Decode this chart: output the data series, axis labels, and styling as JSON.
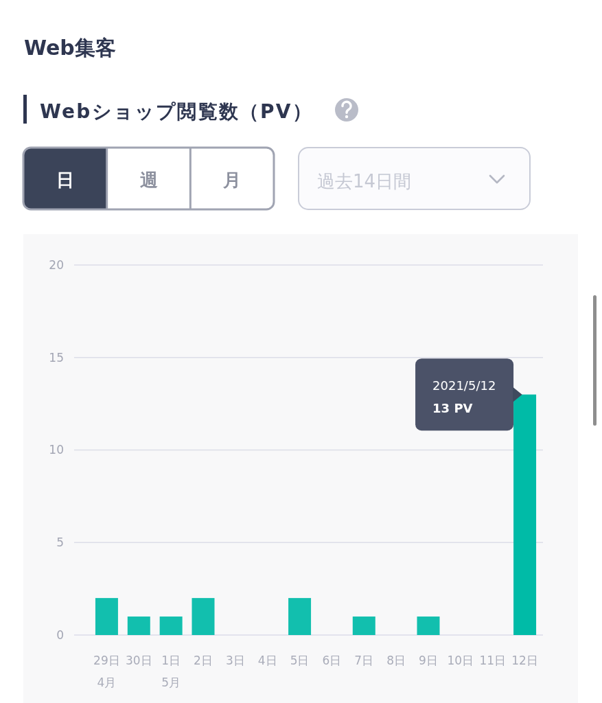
{
  "chart_data": {
    "type": "bar",
    "title": "Web集客",
    "subtitle": "Webショップ閲覧数（PV）",
    "categories": [
      "29日\n4月",
      "30日",
      "1日\n5月",
      "2日",
      "3日",
      "4日",
      "5日",
      "6日",
      "7日",
      "8日",
      "9日",
      "10日",
      "11日",
      "12日"
    ],
    "values": [
      2,
      1,
      1,
      2,
      0,
      0,
      2,
      0,
      1,
      0,
      1,
      0,
      0,
      13
    ],
    "colors": [
      "#12bfae",
      "#12bfae",
      "#12bfae",
      "#12bfae",
      null,
      null,
      "#12bfae",
      null,
      "#12bfae",
      null,
      "#12bfae",
      null,
      null,
      "#00bba7"
    ],
    "ylim": [
      0,
      20
    ],
    "yticks": [
      0,
      5,
      10,
      15,
      20
    ],
    "grid": "y",
    "annotations": [
      "日",
      "週",
      "月",
      "過去14日間",
      {
        "text": "2021/5/12\n13 PV",
        "x": "12日",
        "y": 13
      }
    ]
  }
}
